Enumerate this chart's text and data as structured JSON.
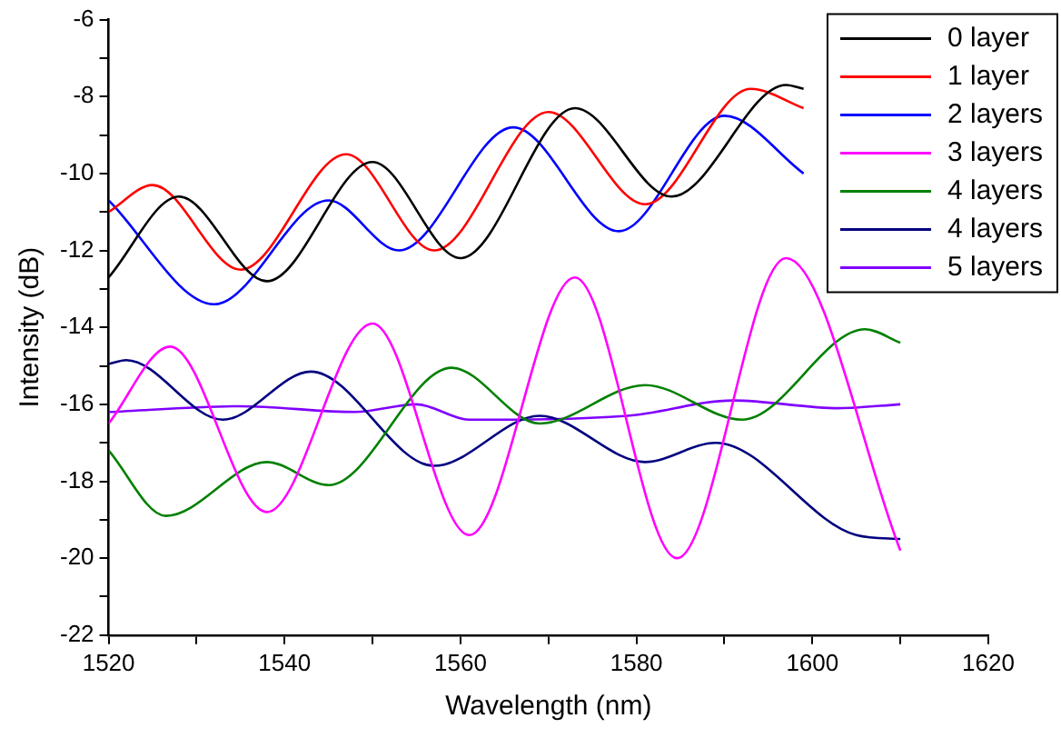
{
  "chart_data": {
    "type": "line",
    "xlabel": "Wavelength (nm)",
    "ylabel": "Intensity (dB)",
    "xlim": [
      1520,
      1620
    ],
    "xticks": [
      1520,
      {
        "value": 1530,
        "label": null
      },
      1540,
      {
        "value": 1550,
        "label": null
      },
      1560,
      {
        "value": 1570,
        "label": null
      },
      1580,
      {
        "value": 1590,
        "label": null
      },
      1600,
      {
        "value": 1610,
        "label": null
      },
      1620
    ],
    "ylim": [
      -22,
      -6
    ],
    "yticks": [
      -22,
      {
        "value": -21,
        "label": null
      },
      -20,
      {
        "value": -19,
        "label": null
      },
      -18,
      {
        "value": -17,
        "label": null
      },
      -16,
      {
        "value": -15,
        "label": null
      },
      -14,
      {
        "value": -13,
        "label": null
      },
      -12,
      {
        "value": -11,
        "label": null
      },
      -10,
      {
        "value": -9,
        "label": null
      },
      -8,
      {
        "value": -7,
        "label": null
      },
      -6
    ],
    "grid": false,
    "legend": "top right",
    "marker": "none",
    "line_style": "solid",
    "series": [
      {
        "name": "0 layer",
        "color": "#000000",
        "x": [
          1520,
          1528,
          1538,
          1550,
          1560,
          1573,
          1584,
          1597,
          1599
        ],
        "values": [
          -12.7,
          -10.6,
          -12.8,
          -9.7,
          -12.2,
          -8.3,
          -10.6,
          -7.7,
          -7.8
        ]
      },
      {
        "name": "1 layer",
        "color": "#ff0000",
        "x": [
          1520,
          1525,
          1535,
          1547,
          1557,
          1570,
          1581,
          1593,
          1599
        ],
        "values": [
          -11.0,
          -10.3,
          -12.5,
          -9.5,
          -12.0,
          -8.4,
          -10.8,
          -7.8,
          -8.3
        ]
      },
      {
        "name": "2 layers",
        "color": "#0000ff",
        "x": [
          1520,
          1532,
          1545,
          1553,
          1566,
          1578,
          1590,
          1599
        ],
        "values": [
          -10.7,
          -13.4,
          -10.7,
          -12.0,
          -8.8,
          -11.5,
          -8.5,
          -10.0
        ]
      },
      {
        "name": "3 layers",
        "color": "#ff00ff",
        "x": [
          1520,
          1527,
          1538,
          1550,
          1561,
          1573,
          1584.6,
          1597,
          1610
        ],
        "values": [
          -16.5,
          -14.5,
          -18.8,
          -13.9,
          -19.4,
          -12.7,
          -20.0,
          -12.2,
          -19.8
        ]
      },
      {
        "name": "4 layers",
        "color": "#008000",
        "x": [
          1520,
          1526.5,
          1538,
          1545,
          1559,
          1569,
          1581,
          1592,
          1606,
          1610
        ],
        "values": [
          -17.2,
          -18.9,
          -17.5,
          -18.1,
          -15.05,
          -16.5,
          -15.5,
          -16.4,
          -14.05,
          -14.4
        ]
      },
      {
        "name": "4 layers",
        "color": "#000080",
        "x": [
          1520,
          1522,
          1533,
          1543,
          1557,
          1569,
          1581,
          1589,
          1605,
          1610
        ],
        "values": [
          -14.95,
          -14.85,
          -16.4,
          -15.15,
          -17.6,
          -16.3,
          -17.5,
          -17.0,
          -19.4,
          -19.5
        ]
      },
      {
        "name": "5 layers",
        "color": "#8000ff",
        "x": [
          1520,
          1535,
          1548,
          1555,
          1561,
          1579,
          1591,
          1603,
          1610
        ],
        "values": [
          -16.2,
          -16.05,
          -16.2,
          -16.0,
          -16.4,
          -16.3,
          -15.9,
          -16.1,
          -16.0
        ]
      }
    ]
  }
}
